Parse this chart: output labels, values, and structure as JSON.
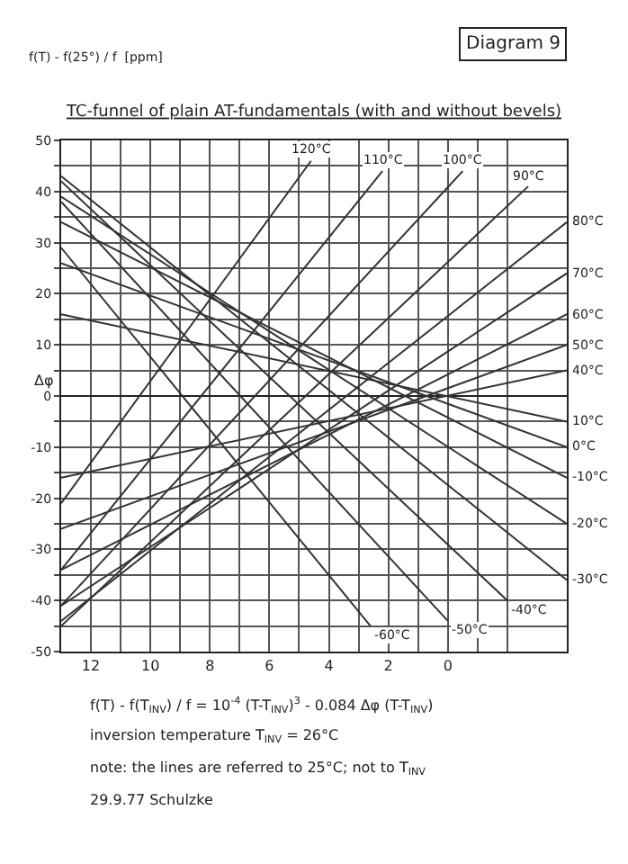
{
  "chart_data": {
    "type": "line",
    "title": "TC-funnel of plain AT-fundamentals (with and without bevels)",
    "xlabel": "Δφ",
    "annotations": [
      "Diagram 9",
      "f(T) - f(25°) / f  [ppm]",
      "f(T) - f(T$_{INV}$) / f = 10$^{-4}$ (T-T$_{INV}$)$^{3}$ - 0.084 Δφ (T-T$_{INV}$)",
      "inversion temperature T$_{INV}$ = 26°C",
      "note: the lines are referred to 25°C; not to T$_{INV}$",
      "29.9.77 Schulzke"
    ],
    "xlim": [
      13,
      -4
    ],
    "ylim": [
      -50,
      50
    ],
    "xticks": [
      {
        "value": 13,
        "label": null
      },
      12,
      {
        "value": 11,
        "label": null
      },
      10,
      {
        "value": 9,
        "label": null
      },
      8,
      {
        "value": 7,
        "label": null
      },
      6,
      {
        "value": 5,
        "label": null
      },
      4,
      {
        "value": 3,
        "label": null
      },
      2,
      {
        "value": 1,
        "label": null
      },
      0,
      {
        "value": -1,
        "label": null
      },
      {
        "value": -2,
        "label": null
      }
    ],
    "yticks": [
      -50,
      {
        "value": -45,
        "label": null
      },
      -40,
      {
        "value": -35,
        "label": null
      },
      -30,
      {
        "value": -25,
        "label": null
      },
      -20,
      {
        "value": -15,
        "label": null
      },
      -10,
      {
        "value": -5,
        "label": null
      },
      0,
      {
        "value": 5,
        "label": null
      },
      10,
      {
        "value": 15,
        "label": null
      },
      20,
      {
        "value": 25,
        "label": null
      },
      30,
      {
        "value": 35,
        "label": null
      },
      40,
      {
        "value": 45,
        "label": null
      },
      50
    ],
    "grid": true,
    "legend": false,
    "marker": "none",
    "line_style": "solid",
    "series": [
      {
        "name": "120°C",
        "color": "#333333",
        "x": [
          13,
          4.6
        ],
        "values": [
          -21,
          46
        ]
      },
      {
        "name": "110°C",
        "color": "#333333",
        "x": [
          13,
          2.2
        ],
        "values": [
          -34,
          44
        ]
      },
      {
        "name": "100°C",
        "color": "#333333",
        "x": [
          13,
          -0.5
        ],
        "values": [
          -41,
          44
        ]
      },
      {
        "name": "90°C",
        "color": "#333333",
        "x": [
          13,
          -2.7
        ],
        "values": [
          -45,
          41
        ]
      },
      {
        "name": "80°C",
        "color": "#333333",
        "x": [
          13,
          -4
        ],
        "values": [
          -44,
          34
        ]
      },
      {
        "name": "70°C",
        "color": "#333333",
        "x": [
          13,
          -4
        ],
        "values": [
          -41,
          24
        ]
      },
      {
        "name": "60°C",
        "color": "#333333",
        "x": [
          13,
          -4
        ],
        "values": [
          -34,
          16
        ]
      },
      {
        "name": "50°C",
        "color": "#333333",
        "x": [
          13,
          -4
        ],
        "values": [
          -26,
          10
        ]
      },
      {
        "name": "40°C",
        "color": "#333333",
        "x": [
          13,
          -4
        ],
        "values": [
          -16,
          5
        ]
      },
      {
        "name": "10°C",
        "color": "#333333",
        "x": [
          13,
          -4
        ],
        "values": [
          16,
          -5
        ]
      },
      {
        "name": "0°C",
        "color": "#333333",
        "x": [
          13,
          -4
        ],
        "values": [
          26,
          -10
        ]
      },
      {
        "name": "-10°C",
        "color": "#333333",
        "x": [
          13,
          -4
        ],
        "values": [
          34,
          -16
        ]
      },
      {
        "name": "-20°C",
        "color": "#333333",
        "x": [
          13,
          -4
        ],
        "values": [
          39,
          -25
        ]
      },
      {
        "name": "-30°C",
        "color": "#333333",
        "x": [
          13,
          -4
        ],
        "values": [
          43,
          -36
        ]
      },
      {
        "name": "-40°C",
        "color": "#333333",
        "x": [
          13,
          -2
        ],
        "values": [
          42,
          -40
        ]
      },
      {
        "name": "-50°C",
        "color": "#333333",
        "x": [
          13,
          0
        ],
        "values": [
          38,
          -44
        ]
      },
      {
        "name": "-60°C",
        "color": "#333333",
        "x": [
          13,
          2.6
        ],
        "values": [
          29,
          -45
        ]
      }
    ]
  }
}
